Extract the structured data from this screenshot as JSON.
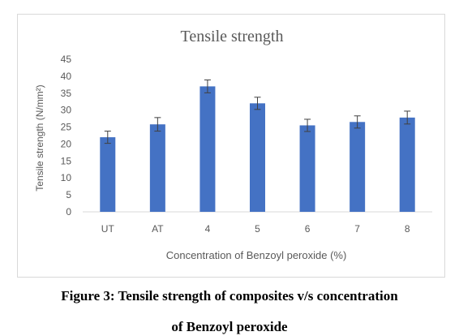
{
  "chart_data": {
    "type": "bar",
    "title": "Tensile strength",
    "xlabel": "Concentration of Benzoyl peroxide (%)",
    "ylabel": "Tensile strength (N/mm²)",
    "categories": [
      "UT",
      "AT",
      "4",
      "5",
      "6",
      "7",
      "8"
    ],
    "values": [
      22,
      25.8,
      37,
      32,
      25.5,
      26.5,
      27.8
    ],
    "error": [
      1.8,
      2.0,
      1.9,
      1.8,
      1.8,
      1.8,
      1.9
    ],
    "ylim": [
      0,
      45
    ],
    "yticks": [
      "0",
      "5",
      "10",
      "15",
      "20",
      "25",
      "30",
      "35",
      "40",
      "45"
    ],
    "grid": false,
    "legend": "none",
    "bar_color": "#4472c4",
    "error_color": "#404040"
  },
  "caption": {
    "line1": "Figure 3: Tensile strength of composites v/s concentration",
    "line2": "of Benzoyl peroxide"
  }
}
